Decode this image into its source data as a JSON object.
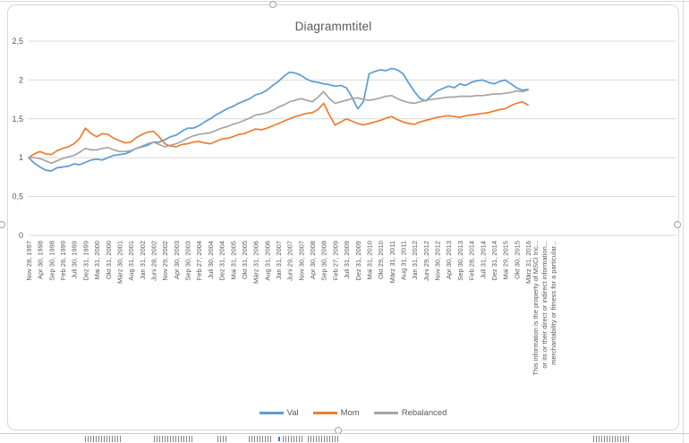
{
  "chart": {
    "colors": {
      "grid": "#d9d9d9",
      "text": "#595959",
      "card_border": "#d7d7d7",
      "val": "#5b9bd5",
      "mom": "#ed7d31",
      "rebalanced": "#a5a5a5"
    },
    "disclaimer_lines": [
      "This information is the property of MSCI Inc...",
      "or its or their direct or indirect information...",
      "merchantability or fitness for a particular..."
    ]
  },
  "chart_data": {
    "type": "line",
    "title": "Diagrammtitel",
    "xlabel": "",
    "ylabel": "",
    "ylim": [
      0,
      2.5
    ],
    "grid": true,
    "legend_position": "bottom",
    "y_ticks": {
      "labels": [
        "0",
        "0,5",
        "1",
        "1,5",
        "2",
        "2,5"
      ],
      "values": [
        0,
        0.5,
        1,
        1.5,
        2,
        2.5
      ]
    },
    "x_note": "Monthly index values Nov 1997 - Apr 2016, sampled every ~2.5 months (89 points); axis tick labels shown every 2nd point",
    "x_tick_labels": [
      "Nov 28, 1997",
      "Apr 30, 1998",
      "Sep 30, 1998",
      "Feb 26, 1999",
      "Juli 30, 1999",
      "Dez 31, 1999",
      "Mai 31, 2000",
      "Okt 31, 2000",
      "März 30, 2001",
      "Aug 31, 2001",
      "Jan 31, 2002",
      "Juni 28, 2002",
      "Nov 29, 2002",
      "Apr 30, 2003",
      "Sep 30, 2003",
      "Feb 27, 2004",
      "Juli 30, 2004",
      "Dez 31, 2004",
      "Mai 31, 2005",
      "Okt 31, 2005",
      "März 31, 2006",
      "Aug 31, 2006",
      "Jan 31, 2007",
      "Juni 29, 2007",
      "Nov 30, 2007",
      "Apr 30, 2008",
      "Sep 30, 2008",
      "Feb 27, 2009",
      "Juli 31, 2009",
      "Dez 31, 2009",
      "Mai 31, 2010",
      "Okt 29, 2010",
      "März 31, 2011",
      "Aug 31, 2011",
      "Jan 31, 2012",
      "Juni 29, 2012",
      "Nov 30, 2012",
      "Apr 30, 2013",
      "Sep 30, 2013",
      "Feb 28, 2014",
      "Juli 31, 2014",
      "Dez 31, 2014",
      "Mai 29, 2015",
      "Okt 30, 2015",
      "März 31, 2016"
    ],
    "series": [
      {
        "name": "Val",
        "color": "#5b9bd5",
        "values": [
          1.0,
          0.93,
          0.88,
          0.84,
          0.83,
          0.87,
          0.88,
          0.89,
          0.92,
          0.91,
          0.94,
          0.97,
          0.98,
          0.97,
          1.0,
          1.03,
          1.04,
          1.05,
          1.08,
          1.12,
          1.14,
          1.16,
          1.2,
          1.2,
          1.23,
          1.27,
          1.29,
          1.34,
          1.38,
          1.38,
          1.41,
          1.46,
          1.5,
          1.55,
          1.59,
          1.63,
          1.66,
          1.7,
          1.73,
          1.76,
          1.81,
          1.83,
          1.87,
          1.93,
          1.98,
          2.05,
          2.1,
          2.09,
          2.06,
          2.01,
          1.98,
          1.97,
          1.95,
          1.94,
          1.92,
          1.93,
          1.9,
          1.78,
          1.63,
          1.72,
          2.08,
          2.11,
          2.13,
          2.12,
          2.15,
          2.13,
          2.08,
          1.96,
          1.85,
          1.76,
          1.73,
          1.8,
          1.86,
          1.89,
          1.92,
          1.9,
          1.95,
          1.93,
          1.97,
          1.99,
          2.0,
          1.97,
          1.95,
          1.98,
          2.0,
          1.95,
          1.9,
          1.87,
          1.88
        ]
      },
      {
        "name": "Mom",
        "color": "#ed7d31",
        "values": [
          1.0,
          1.05,
          1.08,
          1.05,
          1.04,
          1.09,
          1.12,
          1.14,
          1.18,
          1.25,
          1.38,
          1.31,
          1.27,
          1.31,
          1.3,
          1.25,
          1.22,
          1.19,
          1.2,
          1.26,
          1.3,
          1.33,
          1.34,
          1.27,
          1.18,
          1.15,
          1.14,
          1.17,
          1.18,
          1.2,
          1.21,
          1.19,
          1.18,
          1.21,
          1.24,
          1.25,
          1.27,
          1.3,
          1.31,
          1.34,
          1.37,
          1.36,
          1.38,
          1.41,
          1.44,
          1.47,
          1.5,
          1.53,
          1.55,
          1.57,
          1.58,
          1.62,
          1.7,
          1.55,
          1.42,
          1.46,
          1.5,
          1.47,
          1.44,
          1.42,
          1.44,
          1.46,
          1.48,
          1.51,
          1.53,
          1.49,
          1.46,
          1.44,
          1.43,
          1.46,
          1.48,
          1.5,
          1.52,
          1.53,
          1.54,
          1.53,
          1.52,
          1.54,
          1.55,
          1.56,
          1.57,
          1.58,
          1.6,
          1.62,
          1.63,
          1.67,
          1.7,
          1.72,
          1.68
        ]
      },
      {
        "name": "Rebalanced",
        "color": "#a5a5a5",
        "values": [
          1.0,
          1.0,
          0.99,
          0.96,
          0.93,
          0.96,
          0.99,
          1.01,
          1.03,
          1.07,
          1.12,
          1.1,
          1.1,
          1.12,
          1.13,
          1.1,
          1.08,
          1.08,
          1.09,
          1.12,
          1.15,
          1.18,
          1.2,
          1.17,
          1.14,
          1.16,
          1.18,
          1.21,
          1.25,
          1.28,
          1.3,
          1.31,
          1.32,
          1.35,
          1.38,
          1.4,
          1.43,
          1.45,
          1.48,
          1.51,
          1.55,
          1.56,
          1.58,
          1.61,
          1.65,
          1.68,
          1.72,
          1.74,
          1.76,
          1.74,
          1.72,
          1.78,
          1.85,
          1.76,
          1.7,
          1.72,
          1.74,
          1.76,
          1.77,
          1.75,
          1.74,
          1.75,
          1.77,
          1.79,
          1.8,
          1.76,
          1.73,
          1.71,
          1.7,
          1.72,
          1.74,
          1.75,
          1.76,
          1.77,
          1.78,
          1.78,
          1.79,
          1.79,
          1.79,
          1.8,
          1.8,
          1.81,
          1.82,
          1.82,
          1.83,
          1.84,
          1.86,
          1.85,
          1.87
        ]
      }
    ]
  }
}
